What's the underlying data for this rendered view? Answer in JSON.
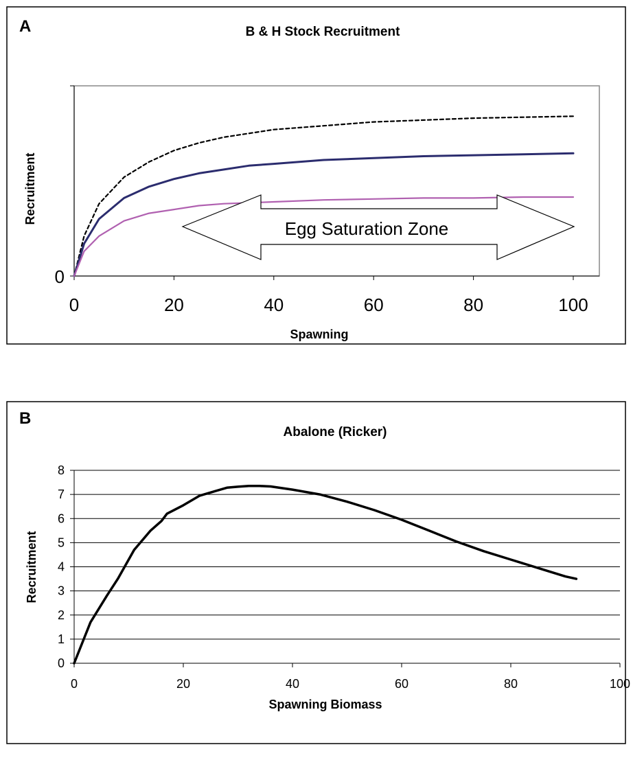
{
  "chart_data": [
    {
      "panel_label": "A",
      "type": "line",
      "title": "B & H Stock Recruitment",
      "xlabel": "Spawning",
      "ylabel": "Recruitment",
      "xlim": [
        0,
        100
      ],
      "x_ticks": [
        "0",
        "20",
        "40",
        "60",
        "80",
        "100"
      ],
      "y_ticks": [
        "0"
      ],
      "grid": false,
      "annotation": "Egg Saturation Zone",
      "annotation_shape": "double-headed arrow",
      "series": [
        {
          "color": "#000000",
          "style": "dashed",
          "x": [
            0,
            2,
            5,
            10,
            15,
            20,
            25,
            30,
            35,
            40,
            50,
            60,
            70,
            80,
            90,
            100
          ],
          "y": [
            0,
            0.21,
            0.38,
            0.52,
            0.6,
            0.66,
            0.7,
            0.73,
            0.75,
            0.77,
            0.79,
            0.81,
            0.82,
            0.83,
            0.835,
            0.84
          ]
        },
        {
          "color": "#2b2c6e",
          "style": "solid",
          "x": [
            0,
            2,
            5,
            10,
            15,
            20,
            25,
            30,
            35,
            40,
            50,
            60,
            70,
            80,
            90,
            100
          ],
          "y": [
            0,
            0.17,
            0.3,
            0.41,
            0.47,
            0.51,
            0.54,
            0.56,
            0.58,
            0.59,
            0.61,
            0.62,
            0.63,
            0.635,
            0.64,
            0.645
          ]
        },
        {
          "color": "#b060b0",
          "style": "solid",
          "x": [
            0,
            2,
            5,
            10,
            15,
            20,
            25,
            30,
            35,
            40,
            50,
            60,
            70,
            80,
            90,
            100
          ],
          "y": [
            0,
            0.13,
            0.21,
            0.29,
            0.33,
            0.35,
            0.37,
            0.38,
            0.385,
            0.39,
            0.4,
            0.405,
            0.41,
            0.41,
            0.415,
            0.415
          ]
        }
      ]
    },
    {
      "panel_label": "B",
      "type": "line",
      "title": "Abalone (Ricker)",
      "xlabel": "Spawning Biomass",
      "ylabel": "Recruitment",
      "xlim": [
        0,
        100
      ],
      "ylim": [
        0,
        8
      ],
      "x_ticks": [
        "0",
        "20",
        "40",
        "60",
        "80",
        "100"
      ],
      "y_ticks": [
        "0",
        "1",
        "2",
        "3",
        "4",
        "5",
        "6",
        "7",
        "8"
      ],
      "grid": true,
      "series": [
        {
          "color": "#000000",
          "style": "solid",
          "x": [
            0,
            3,
            6,
            8,
            11,
            14,
            16,
            17,
            20,
            23,
            26,
            28,
            30,
            32,
            34,
            36,
            40,
            45,
            50,
            55,
            60,
            65,
            70,
            75,
            80,
            85,
            90,
            92
          ],
          "y": [
            0,
            1.7,
            2.8,
            3.5,
            4.7,
            5.5,
            5.9,
            6.2,
            6.55,
            6.95,
            7.15,
            7.28,
            7.32,
            7.35,
            7.35,
            7.33,
            7.2,
            7.0,
            6.7,
            6.35,
            5.95,
            5.5,
            5.05,
            4.65,
            4.3,
            3.95,
            3.6,
            3.5
          ]
        }
      ]
    }
  ]
}
